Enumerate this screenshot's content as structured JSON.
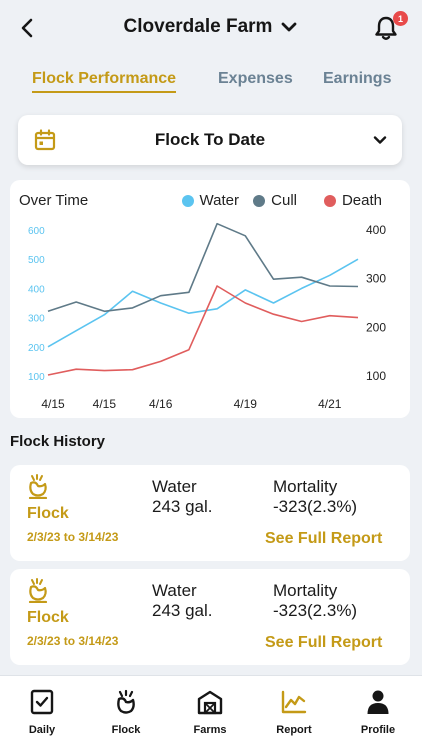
{
  "header": {
    "title": "Cloverdale Farm",
    "notification_count": "1"
  },
  "tabs": [
    {
      "label": "Flock Performance",
      "active": true
    },
    {
      "label": "Expenses",
      "active": false
    },
    {
      "label": "Earnings",
      "active": false
    }
  ],
  "period_selector": {
    "value": "Flock To Date",
    "icon": "calendar-icon"
  },
  "chart_data": {
    "type": "line",
    "title": "Over Time",
    "x": [
      "4/15",
      "",
      "4/15",
      "",
      "4/16",
      "",
      "",
      "4/19",
      "",
      "",
      "4/21",
      ""
    ],
    "x_tick_labels": [
      "4/15",
      "4/15",
      "4/16",
      "4/19",
      "4/21"
    ],
    "left_axis": {
      "ticks": [
        "600",
        "500",
        "400",
        "300",
        "200",
        "100"
      ],
      "ylim": [
        100,
        600
      ]
    },
    "right_axis": {
      "ticks": [
        "400",
        "300",
        "200",
        "100"
      ],
      "ylim": [
        100,
        400
      ]
    },
    "legend_placement": "top-right",
    "series": [
      {
        "name": "Water",
        "color": "#5bc4f0",
        "axis": "left",
        "values": [
          200,
          255,
          310,
          390,
          350,
          315,
          330,
          395,
          350,
          400,
          445,
          500
        ]
      },
      {
        "name": "Cull",
        "color": "#5f7a88",
        "axis": "right",
        "values": [
          233,
          252,
          233,
          240,
          265,
          272,
          413,
          388,
          299,
          303,
          285,
          284
        ]
      },
      {
        "name": "Death",
        "color": "#e05d5d",
        "axis": "right",
        "values": [
          102,
          114,
          111,
          113,
          130,
          154,
          285,
          250,
          227,
          212,
          224,
          220
        ]
      }
    ]
  },
  "flock_history": {
    "title": "Flock History",
    "items": [
      {
        "name": "Flock",
        "date_range": "2/3/23 to 3/14/23",
        "water_label": "Water",
        "water_value": "243 gal.",
        "mortality_label": "Mortality",
        "mortality_value": "-323(2.3%)",
        "link": "See Full Report"
      },
      {
        "name": "Flock",
        "date_range": "2/3/23 to 3/14/23",
        "water_label": "Water",
        "water_value": "243 gal.",
        "mortality_label": "Mortality",
        "mortality_value": "-323(2.3%)",
        "link": "See Full Report"
      }
    ]
  },
  "nav": [
    {
      "label": "Daily",
      "icon": "daily-log-icon"
    },
    {
      "label": "Flock",
      "icon": "hen-icon"
    },
    {
      "label": "Farms",
      "icon": "barn-icon"
    },
    {
      "label": "Report",
      "icon": "line-chart-icon",
      "active": true
    },
    {
      "label": "Profile",
      "icon": "person-icon"
    }
  ],
  "colors": {
    "accent": "#c49a17",
    "tab_inactive": "#6b8294",
    "badge": "#e84a4a"
  }
}
